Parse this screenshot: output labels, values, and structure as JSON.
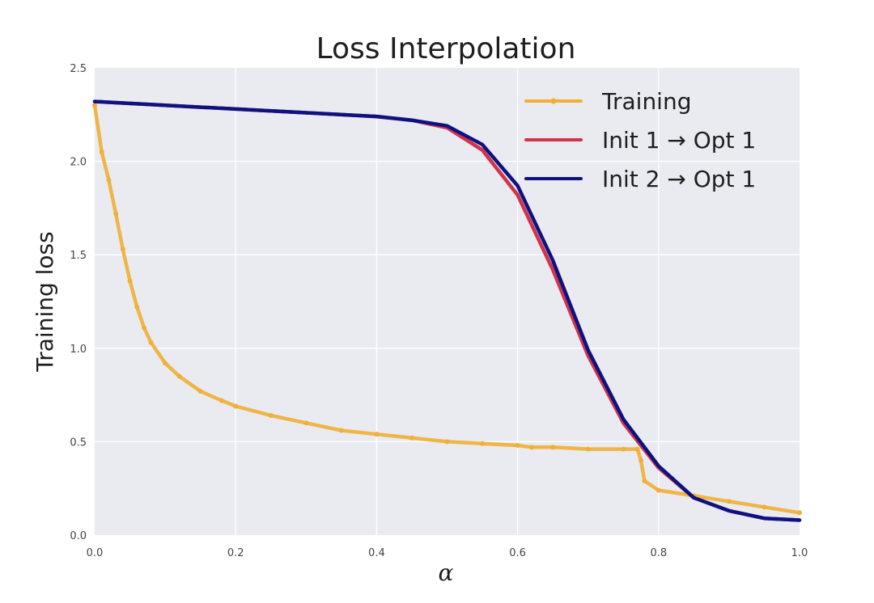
{
  "chart_data": {
    "type": "line",
    "title": "Loss Interpolation",
    "xlabel": "α",
    "ylabel": "Training loss",
    "xlim": [
      0.0,
      1.0
    ],
    "ylim": [
      0.0,
      2.5
    ],
    "x_ticks": [
      "0.0",
      "0.2",
      "0.4",
      "0.6",
      "0.8",
      "1.0"
    ],
    "y_ticks": [
      "0.0",
      "0.5",
      "1.0",
      "1.5",
      "2.0",
      "2.5"
    ],
    "grid": true,
    "legend_position": "top-right",
    "series": [
      {
        "name": "Training",
        "color": "#f0b038",
        "marker": "dot",
        "x": [
          0.0,
          0.01,
          0.02,
          0.03,
          0.04,
          0.05,
          0.06,
          0.07,
          0.08,
          0.1,
          0.12,
          0.15,
          0.18,
          0.2,
          0.25,
          0.3,
          0.35,
          0.4,
          0.45,
          0.5,
          0.55,
          0.6,
          0.62,
          0.65,
          0.7,
          0.75,
          0.77,
          0.775,
          0.78,
          0.8,
          0.85,
          0.9,
          0.95,
          1.0
        ],
        "values": [
          2.3,
          2.05,
          1.9,
          1.72,
          1.53,
          1.36,
          1.22,
          1.11,
          1.03,
          0.92,
          0.85,
          0.77,
          0.72,
          0.69,
          0.64,
          0.6,
          0.56,
          0.54,
          0.52,
          0.5,
          0.49,
          0.48,
          0.47,
          0.47,
          0.46,
          0.46,
          0.46,
          0.4,
          0.29,
          0.24,
          0.21,
          0.18,
          0.15,
          0.12
        ]
      },
      {
        "name": "Init 1  →  Opt 1",
        "color": "#d0344a",
        "x": [
          0.0,
          0.1,
          0.2,
          0.3,
          0.4,
          0.45,
          0.5,
          0.55,
          0.6,
          0.65,
          0.7,
          0.75,
          0.8,
          0.85,
          0.9,
          0.95,
          1.0
        ],
        "values": [
          2.32,
          2.3,
          2.28,
          2.26,
          2.24,
          2.22,
          2.18,
          2.06,
          1.82,
          1.42,
          0.96,
          0.6,
          0.36,
          0.2,
          0.13,
          0.09,
          0.08
        ]
      },
      {
        "name": "Init 2  →  Opt 1",
        "color": "#0d1280",
        "x": [
          0.0,
          0.1,
          0.2,
          0.3,
          0.4,
          0.45,
          0.5,
          0.55,
          0.6,
          0.65,
          0.7,
          0.75,
          0.8,
          0.85,
          0.9,
          0.95,
          1.0
        ],
        "values": [
          2.32,
          2.3,
          2.28,
          2.26,
          2.24,
          2.22,
          2.19,
          2.09,
          1.87,
          1.47,
          0.99,
          0.62,
          0.37,
          0.2,
          0.13,
          0.09,
          0.08
        ]
      }
    ]
  }
}
